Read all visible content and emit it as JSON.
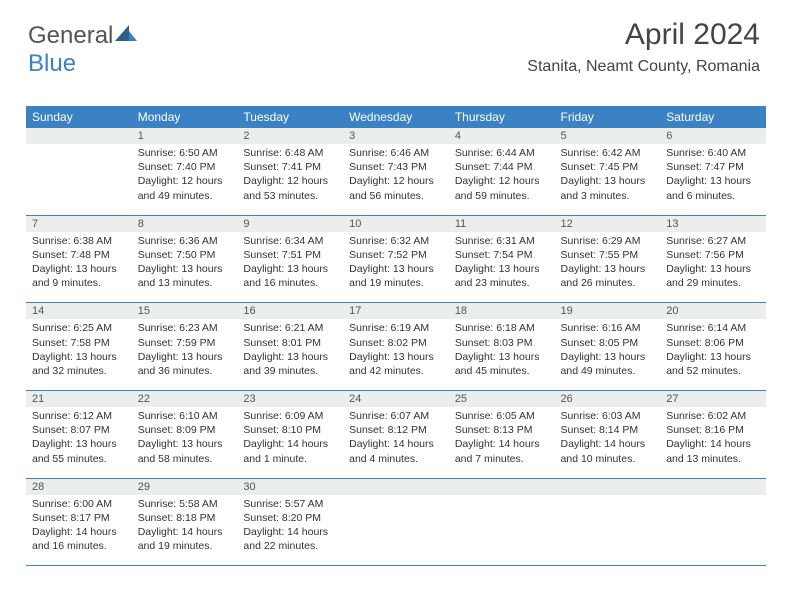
{
  "brand": {
    "general": "General",
    "blue": "Blue"
  },
  "header": {
    "month_year": "April 2024",
    "location": "Stanita, Neamt County, Romania"
  },
  "colors": {
    "header_bg": "#3b82c4",
    "header_text": "#ffffff",
    "daynum_bg": "#eceded",
    "border": "#3b82c4",
    "text": "#333333"
  },
  "days_of_week": [
    "Sunday",
    "Monday",
    "Tuesday",
    "Wednesday",
    "Thursday",
    "Friday",
    "Saturday"
  ],
  "weeks": [
    {
      "nums": [
        "",
        "1",
        "2",
        "3",
        "4",
        "5",
        "6"
      ],
      "cells": [
        "",
        "Sunrise: 6:50 AM\nSunset: 7:40 PM\nDaylight: 12 hours and 49 minutes.",
        "Sunrise: 6:48 AM\nSunset: 7:41 PM\nDaylight: 12 hours and 53 minutes.",
        "Sunrise: 6:46 AM\nSunset: 7:43 PM\nDaylight: 12 hours and 56 minutes.",
        "Sunrise: 6:44 AM\nSunset: 7:44 PM\nDaylight: 12 hours and 59 minutes.",
        "Sunrise: 6:42 AM\nSunset: 7:45 PM\nDaylight: 13 hours and 3 minutes.",
        "Sunrise: 6:40 AM\nSunset: 7:47 PM\nDaylight: 13 hours and 6 minutes."
      ]
    },
    {
      "nums": [
        "7",
        "8",
        "9",
        "10",
        "11",
        "12",
        "13"
      ],
      "cells": [
        "Sunrise: 6:38 AM\nSunset: 7:48 PM\nDaylight: 13 hours and 9 minutes.",
        "Sunrise: 6:36 AM\nSunset: 7:50 PM\nDaylight: 13 hours and 13 minutes.",
        "Sunrise: 6:34 AM\nSunset: 7:51 PM\nDaylight: 13 hours and 16 minutes.",
        "Sunrise: 6:32 AM\nSunset: 7:52 PM\nDaylight: 13 hours and 19 minutes.",
        "Sunrise: 6:31 AM\nSunset: 7:54 PM\nDaylight: 13 hours and 23 minutes.",
        "Sunrise: 6:29 AM\nSunset: 7:55 PM\nDaylight: 13 hours and 26 minutes.",
        "Sunrise: 6:27 AM\nSunset: 7:56 PM\nDaylight: 13 hours and 29 minutes."
      ]
    },
    {
      "nums": [
        "14",
        "15",
        "16",
        "17",
        "18",
        "19",
        "20"
      ],
      "cells": [
        "Sunrise: 6:25 AM\nSunset: 7:58 PM\nDaylight: 13 hours and 32 minutes.",
        "Sunrise: 6:23 AM\nSunset: 7:59 PM\nDaylight: 13 hours and 36 minutes.",
        "Sunrise: 6:21 AM\nSunset: 8:01 PM\nDaylight: 13 hours and 39 minutes.",
        "Sunrise: 6:19 AM\nSunset: 8:02 PM\nDaylight: 13 hours and 42 minutes.",
        "Sunrise: 6:18 AM\nSunset: 8:03 PM\nDaylight: 13 hours and 45 minutes.",
        "Sunrise: 6:16 AM\nSunset: 8:05 PM\nDaylight: 13 hours and 49 minutes.",
        "Sunrise: 6:14 AM\nSunset: 8:06 PM\nDaylight: 13 hours and 52 minutes."
      ]
    },
    {
      "nums": [
        "21",
        "22",
        "23",
        "24",
        "25",
        "26",
        "27"
      ],
      "cells": [
        "Sunrise: 6:12 AM\nSunset: 8:07 PM\nDaylight: 13 hours and 55 minutes.",
        "Sunrise: 6:10 AM\nSunset: 8:09 PM\nDaylight: 13 hours and 58 minutes.",
        "Sunrise: 6:09 AM\nSunset: 8:10 PM\nDaylight: 14 hours and 1 minute.",
        "Sunrise: 6:07 AM\nSunset: 8:12 PM\nDaylight: 14 hours and 4 minutes.",
        "Sunrise: 6:05 AM\nSunset: 8:13 PM\nDaylight: 14 hours and 7 minutes.",
        "Sunrise: 6:03 AM\nSunset: 8:14 PM\nDaylight: 14 hours and 10 minutes.",
        "Sunrise: 6:02 AM\nSunset: 8:16 PM\nDaylight: 14 hours and 13 minutes."
      ]
    },
    {
      "nums": [
        "28",
        "29",
        "30",
        "",
        "",
        "",
        ""
      ],
      "cells": [
        "Sunrise: 6:00 AM\nSunset: 8:17 PM\nDaylight: 14 hours and 16 minutes.",
        "Sunrise: 5:58 AM\nSunset: 8:18 PM\nDaylight: 14 hours and 19 minutes.",
        "Sunrise: 5:57 AM\nSunset: 8:20 PM\nDaylight: 14 hours and 22 minutes.",
        "",
        "",
        "",
        ""
      ]
    }
  ]
}
